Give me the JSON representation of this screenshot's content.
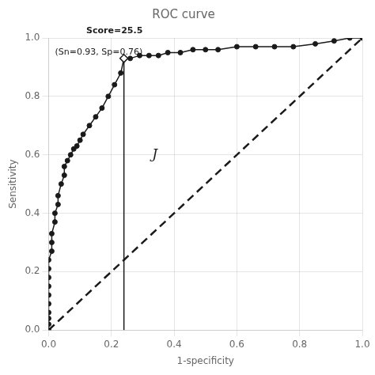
{
  "chart_data": {
    "type": "line",
    "title": "ROC curve",
    "x_label": "1-specificity",
    "y_label": "Sensitivity",
    "xlim": [
      0.0,
      1.0
    ],
    "ylim": [
      0.0,
      1.0
    ],
    "xticks": [
      {
        "value": 0.0,
        "label": "0.0"
      },
      {
        "value": 0.2,
        "label": "0.2"
      },
      {
        "value": 0.4,
        "label": "0.4"
      },
      {
        "value": 0.6,
        "label": "0.6"
      },
      {
        "value": 0.8,
        "label": "0.8"
      },
      {
        "value": 1.0,
        "label": "1.0"
      }
    ],
    "yticks": [
      {
        "value": 0.0,
        "label": "0.0"
      },
      {
        "value": 0.2,
        "label": "0.2"
      },
      {
        "value": 0.4,
        "label": "0.4"
      },
      {
        "value": 0.6,
        "label": "0.6"
      },
      {
        "value": 0.8,
        "label": "0.8"
      },
      {
        "value": 1.0,
        "label": "1.0"
      }
    ],
    "grid": true,
    "legend": "none",
    "series": [
      {
        "color": "#1a1a1a",
        "marker": "circle",
        "line_style": "solid",
        "x": [
          0.0,
          0.0,
          0.0,
          0.0,
          0.0,
          0.0,
          0.0,
          0.0,
          0.0,
          0.0,
          0.01,
          0.01,
          0.01,
          0.02,
          0.02,
          0.03,
          0.03,
          0.04,
          0.05,
          0.05,
          0.06,
          0.07,
          0.08,
          0.09,
          0.1,
          0.11,
          0.13,
          0.15,
          0.17,
          0.19,
          0.21,
          0.23,
          0.24,
          0.26,
          0.29,
          0.32,
          0.35,
          0.38,
          0.42,
          0.46,
          0.5,
          0.54,
          0.6,
          0.66,
          0.72,
          0.78,
          0.85,
          0.91,
          0.96,
          1.0
        ],
        "values": [
          0.0,
          0.02,
          0.04,
          0.06,
          0.09,
          0.12,
          0.15,
          0.18,
          0.21,
          0.24,
          0.27,
          0.3,
          0.33,
          0.37,
          0.4,
          0.43,
          0.46,
          0.5,
          0.53,
          0.56,
          0.58,
          0.6,
          0.62,
          0.63,
          0.65,
          0.67,
          0.7,
          0.73,
          0.76,
          0.8,
          0.84,
          0.88,
          0.93,
          0.93,
          0.94,
          0.94,
          0.94,
          0.95,
          0.95,
          0.96,
          0.96,
          0.96,
          0.97,
          0.97,
          0.97,
          0.97,
          0.98,
          0.99,
          1.0,
          1.0
        ]
      },
      {
        "color": "#1a1a1a",
        "marker": "none",
        "line_style": "dashed",
        "x": [
          0,
          1
        ],
        "values": [
          0,
          1
        ]
      },
      {
        "color": "#1a1a1a",
        "marker": "none",
        "line_style": "solid",
        "x": [
          0.24,
          0.24
        ],
        "values": [
          0,
          0.93
        ]
      },
      {
        "color": "#1a1a1a",
        "marker": "diamond",
        "line_style": "none",
        "x": [
          0.24
        ],
        "values": [
          0.93
        ]
      }
    ],
    "annotations": [
      {
        "text": "Score=25.5",
        "x": 0.12,
        "y": 1.01
      },
      {
        "text": "(Sn=0.93, Sp=0.76)",
        "x": 0.02,
        "y": 0.965
      },
      {
        "text": "J",
        "x": 0.33,
        "y": 0.6
      }
    ]
  }
}
